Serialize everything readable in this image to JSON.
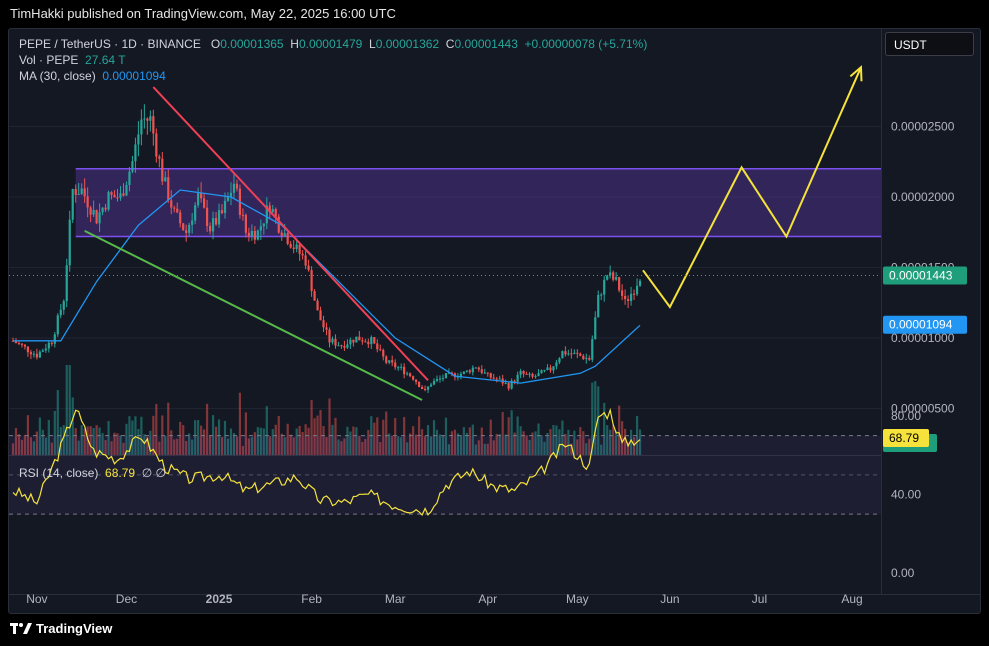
{
  "header": {
    "published": "TimHakki published on TradingView.com, May 22, 2025 16:00 UTC"
  },
  "legend": {
    "symbol": "PEPE / TetherUS · 1D · BINANCE",
    "o_label": "O",
    "o": "0.00001365",
    "h_label": "H",
    "h": "0.00001479",
    "l_label": "L",
    "l": "0.00001362",
    "c_label": "C",
    "c": "0.00001443",
    "change": "+0.00000078 (+5.71%)",
    "vol_label": "Vol · PEPE",
    "vol": "27.64 T",
    "ma_label": "MA (30, close)",
    "ma": "0.00001094",
    "rsi_label": "RSI (14, close)",
    "rsi": "68.79",
    "rsi_extra": "∅ ∅"
  },
  "currency_button": "USDT",
  "footer": {
    "brand": "TradingView"
  },
  "colors": {
    "up": "#26a69a",
    "down": "#ef5350",
    "ma": "#2196f3",
    "zone": "#6a3fc2",
    "rsi": "#f5e33b",
    "projection": "#f5e33b",
    "red_trend": "#ef4056",
    "green_trend": "#57b948"
  },
  "chart_data": [
    {
      "type": "candlestick",
      "x_ticks": [
        "Nov",
        "Dec",
        "2025",
        "Feb",
        "Mar",
        "Apr",
        "May",
        "Jun",
        "Jul",
        "Aug"
      ],
      "y_ticks": [
        "0.00002500",
        "0.00002000",
        "0.00001500",
        "0.00001000",
        "0.00000500"
      ],
      "ylim": [
        2.5e-06,
        2.9e-05
      ],
      "price_label": "0.00001443",
      "ma_value_label": "0.00001094",
      "volume_label": "27.64 T",
      "close_path": [
        [
          "2024-10-24",
          9.8e-06
        ],
        [
          "2024-11-01",
          8.8e-06
        ],
        [
          "2024-11-06",
          9.8e-06
        ],
        [
          "2024-11-10",
          1.28e-05
        ],
        [
          "2024-11-13",
          2.05e-05
        ],
        [
          "2024-11-16",
          2.05e-05
        ],
        [
          "2024-11-21",
          1.85e-05
        ],
        [
          "2024-11-25",
          2e-05
        ],
        [
          "2024-11-29",
          2e-05
        ],
        [
          "2024-12-03",
          2.25e-05
        ],
        [
          "2024-12-06",
          2.55e-05
        ],
        [
          "2024-12-09",
          2.55e-05
        ],
        [
          "2024-12-13",
          2.15e-05
        ],
        [
          "2024-12-17",
          1.88e-05
        ],
        [
          "2024-12-21",
          1.75e-05
        ],
        [
          "2024-12-25",
          2e-05
        ],
        [
          "2024-12-29",
          1.78e-05
        ],
        [
          "2025-01-02",
          1.88e-05
        ],
        [
          "2025-01-06",
          2.1e-05
        ],
        [
          "2025-01-10",
          1.75e-05
        ],
        [
          "2025-01-14",
          1.75e-05
        ],
        [
          "2025-01-18",
          1.95e-05
        ],
        [
          "2025-01-21",
          1.8e-05
        ],
        [
          "2025-01-26",
          1.65e-05
        ],
        [
          "2025-01-30",
          1.55e-05
        ],
        [
          "2025-02-03",
          1.18e-05
        ],
        [
          "2025-02-07",
          9.8e-06
        ],
        [
          "2025-02-11",
          9.5e-06
        ],
        [
          "2025-02-16",
          1e-05
        ],
        [
          "2025-02-21",
          9.8e-06
        ],
        [
          "2025-02-26",
          8.3e-06
        ],
        [
          "2025-03-03",
          7.8e-06
        ],
        [
          "2025-03-07",
          7.2e-06
        ],
        [
          "2025-03-11",
          6.2e-06
        ],
        [
          "2025-03-13",
          6.8e-06
        ],
        [
          "2025-03-18",
          7.3e-06
        ],
        [
          "2025-03-24",
          7.5e-06
        ],
        [
          "2025-03-28",
          8e-06
        ],
        [
          "2025-04-01",
          7.3e-06
        ],
        [
          "2025-04-05",
          7e-06
        ],
        [
          "2025-04-08",
          6.6e-06
        ],
        [
          "2025-04-12",
          7.5e-06
        ],
        [
          "2025-04-16",
          7.2e-06
        ],
        [
          "2025-04-22",
          7.8e-06
        ],
        [
          "2025-04-26",
          9e-06
        ],
        [
          "2025-05-01",
          8.8e-06
        ],
        [
          "2025-05-05",
          8.5e-06
        ],
        [
          "2025-05-08",
          1.28e-05
        ],
        [
          "2025-05-11",
          1.45e-05
        ],
        [
          "2025-05-14",
          1.4e-05
        ],
        [
          "2025-05-17",
          1.25e-05
        ],
        [
          "2025-05-20",
          1.35e-05
        ],
        [
          "2025-05-22",
          1.443e-05
        ]
      ],
      "ma30_path": [
        [
          "2024-10-24",
          9.8e-06
        ],
        [
          "2024-11-09",
          9.8e-06
        ],
        [
          "2024-11-21",
          1.4e-05
        ],
        [
          "2024-12-05",
          1.8e-05
        ],
        [
          "2024-12-19",
          2.05e-05
        ],
        [
          "2025-01-05",
          2e-05
        ],
        [
          "2025-01-22",
          1.8e-05
        ],
        [
          "2025-02-10",
          1.4e-05
        ],
        [
          "2025-03-01",
          1e-05
        ],
        [
          "2025-03-21",
          7.3e-06
        ],
        [
          "2025-04-12",
          6.8e-06
        ],
        [
          "2025-05-02",
          7.5e-06
        ],
        [
          "2025-05-07",
          8e-06
        ],
        [
          "2025-05-22",
          1.09e-05
        ]
      ],
      "resistance_zone": {
        "top": 2.2e-05,
        "bottom": 1.72e-05,
        "from": "2024-11-14"
      },
      "red_trendline": [
        [
          "2024-12-10",
          2.78e-05
        ],
        [
          "2025-03-12",
          7e-06
        ]
      ],
      "green_trendline": [
        [
          "2024-11-17",
          1.76e-05
        ],
        [
          "2025-03-10",
          5.6e-06
        ]
      ],
      "projection": [
        [
          "2025-05-23",
          1.48e-05
        ],
        [
          "2025-06-01",
          1.22e-05
        ],
        [
          "2025-06-25",
          2.21e-05
        ],
        [
          "2025-07-10",
          1.72e-05
        ],
        [
          "2025-08-04",
          2.92e-05
        ]
      ]
    },
    {
      "type": "line",
      "title": "RSI (14, close)",
      "y_ticks": [
        "80.00",
        "40.00",
        "0.00"
      ],
      "bands": [
        70,
        30
      ],
      "ylim": [
        0,
        100
      ],
      "current": 68.79,
      "path": [
        [
          "2024-10-24",
          42
        ],
        [
          "2024-11-01",
          36
        ],
        [
          "2024-11-08",
          60
        ],
        [
          "2024-11-14",
          84
        ],
        [
          "2024-11-20",
          62
        ],
        [
          "2024-11-28",
          58
        ],
        [
          "2024-12-06",
          70
        ],
        [
          "2024-12-14",
          54
        ],
        [
          "2024-12-22",
          48
        ],
        [
          "2025-01-02",
          50
        ],
        [
          "2025-01-10",
          42
        ],
        [
          "2025-01-20",
          46
        ],
        [
          "2025-01-27",
          49
        ],
        [
          "2025-02-04",
          37
        ],
        [
          "2025-02-12",
          36
        ],
        [
          "2025-02-20",
          40
        ],
        [
          "2025-02-28",
          35
        ],
        [
          "2025-03-06",
          33
        ],
        [
          "2025-03-12",
          32
        ],
        [
          "2025-03-18",
          45
        ],
        [
          "2025-03-26",
          52
        ],
        [
          "2025-04-03",
          44
        ],
        [
          "2025-04-10",
          42
        ],
        [
          "2025-04-18",
          50
        ],
        [
          "2025-04-27",
          66
        ],
        [
          "2025-05-05",
          54
        ],
        [
          "2025-05-08",
          80
        ],
        [
          "2025-05-12",
          82
        ],
        [
          "2025-05-16",
          66
        ],
        [
          "2025-05-22",
          68.79
        ]
      ]
    }
  ]
}
